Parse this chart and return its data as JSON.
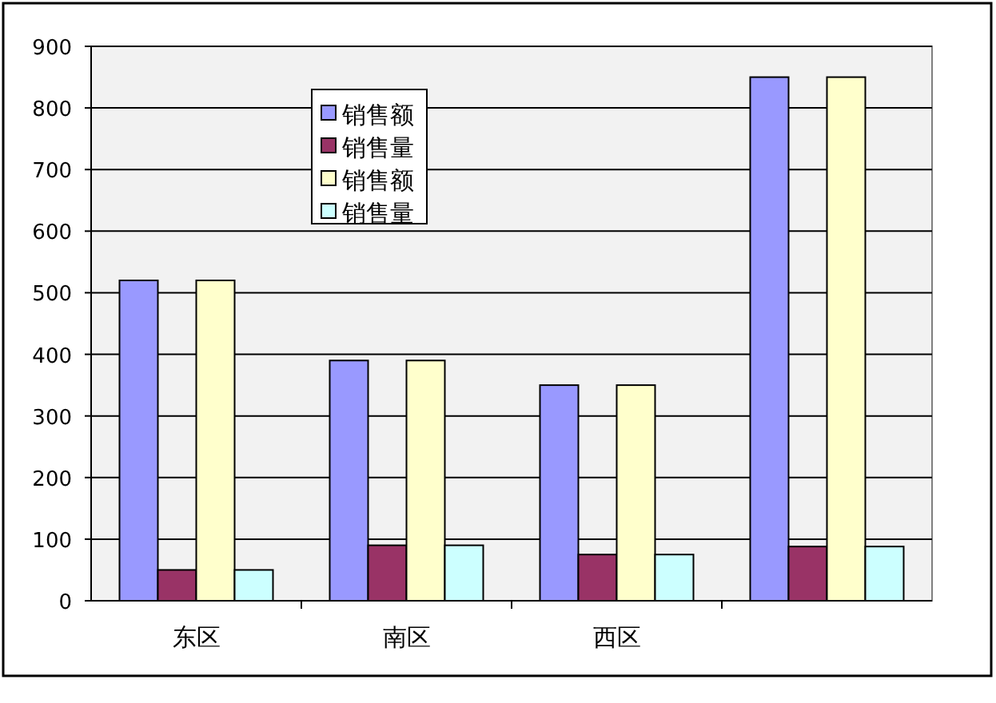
{
  "chart_data": {
    "type": "bar",
    "categories": [
      "东区",
      "南区",
      "西区",
      null
    ],
    "series": [
      {
        "name": "销售额",
        "color": "#9999ff",
        "values": [
          520,
          390,
          350,
          850
        ]
      },
      {
        "name": "销售量",
        "color": "#993366",
        "values": [
          50,
          90,
          75,
          88
        ]
      },
      {
        "name": "销售额",
        "color": "#ffffcc",
        "values": [
          520,
          390,
          350,
          850
        ]
      },
      {
        "name": "销售量",
        "color": "#ccffff",
        "values": [
          50,
          90,
          75,
          88
        ]
      }
    ],
    "ylim": [
      0,
      900
    ],
    "yticks": [
      0,
      100,
      200,
      300,
      400,
      500,
      600,
      700,
      800,
      900
    ],
    "grid": "y",
    "legend": "top"
  }
}
